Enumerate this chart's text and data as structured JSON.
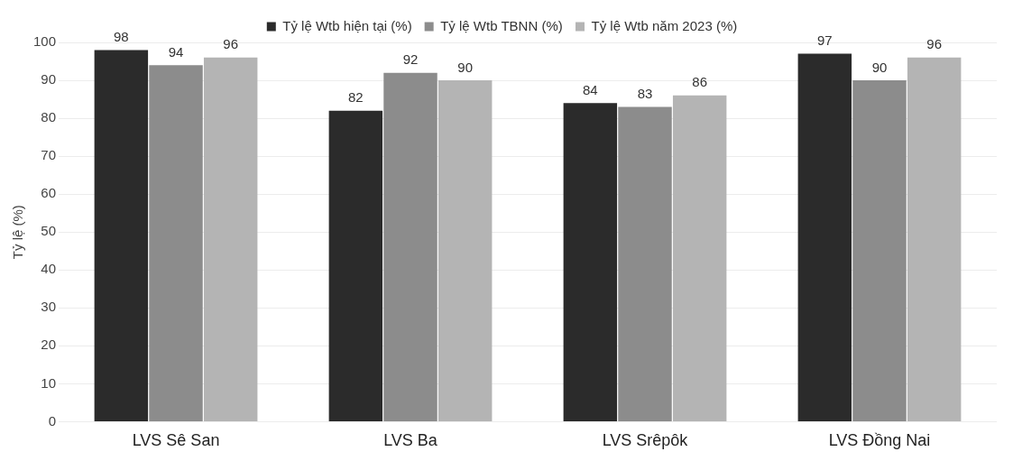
{
  "chart_data": {
    "type": "bar",
    "ylabel": "Tỷ lệ (%)",
    "categories": [
      "LVS Sê San",
      "LVS Ba",
      "LVS Srêpôk",
      "LVS Đồng Nai"
    ],
    "series": [
      {
        "name": "Tỷ lệ Wtb hiện tại (%)",
        "color": "#2b2b2b",
        "values": [
          98,
          82,
          84,
          97
        ]
      },
      {
        "name": "Tỷ lệ Wtb TBNN (%)",
        "color": "#8c8c8c",
        "values": [
          94,
          92,
          83,
          90
        ]
      },
      {
        "name": "Tỷ lệ Wtb năm 2023 (%)",
        "color": "#b4b4b4",
        "values": [
          96,
          90,
          86,
          96
        ]
      }
    ],
    "ylim": [
      0,
      100
    ],
    "yticks": [
      0,
      10,
      20,
      30,
      40,
      50,
      60,
      70,
      80,
      90,
      100
    ],
    "grid": "y",
    "legend": "top",
    "data_labels": true
  }
}
